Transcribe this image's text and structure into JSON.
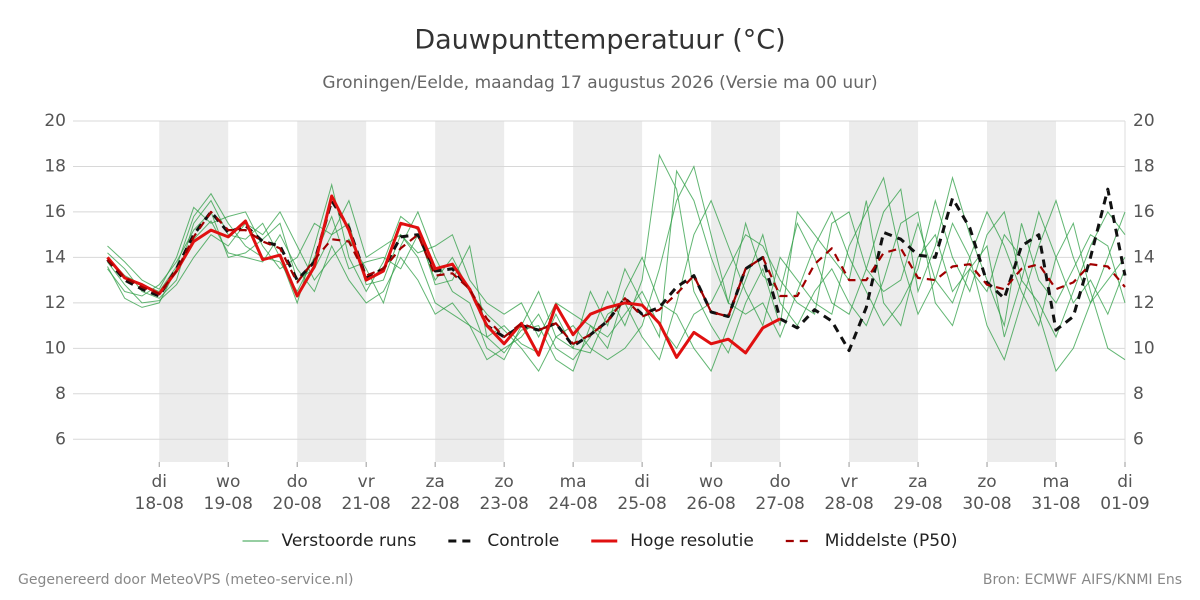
{
  "chart_data": {
    "type": "line",
    "title": "Dauwpunttemperatuur (°C)",
    "subtitle": "Groningen/Eelde, maandag 17 augustus 2026 (Versie ma 00 uur)",
    "footer_left": "Gegenereerd door MeteoVPS (meteo-service.nl)",
    "footer_right": "Bron: ECMWF AIFS/KNMI Ens",
    "grid": true,
    "legend": "bottom",
    "xlim": [
      -0.25,
      15
    ],
    "xticks": [
      {
        "value": 1,
        "label": "di 18-08"
      },
      {
        "value": 2,
        "label": "wo 19-08"
      },
      {
        "value": 3,
        "label": "do 20-08"
      },
      {
        "value": 4,
        "label": "vr 21-08"
      },
      {
        "value": 5,
        "label": "za 22-08"
      },
      {
        "value": 6,
        "label": "zo 23-08"
      },
      {
        "value": 7,
        "label": "ma 24-08"
      },
      {
        "value": 8,
        "label": "di 25-08"
      },
      {
        "value": 9,
        "label": "wo 26-08"
      },
      {
        "value": 10,
        "label": "do 27-08"
      },
      {
        "value": 11,
        "label": "vr 28-08"
      },
      {
        "value": 12,
        "label": "za 29-08"
      },
      {
        "value": 13,
        "label": "zo 30-08"
      },
      {
        "value": 14,
        "label": "ma 31-08"
      },
      {
        "value": 15,
        "label": "di 01-09"
      }
    ],
    "ylim": [
      5,
      20
    ],
    "yticks": [
      6,
      8,
      10,
      12,
      14,
      16,
      18,
      20
    ],
    "y2lim": [
      5,
      20
    ],
    "y2ticks": [
      6,
      8,
      10,
      12,
      14,
      16,
      18,
      20
    ],
    "x": [
      0.25,
      0.5,
      0.75,
      1,
      1.25,
      1.5,
      1.75,
      2,
      2.25,
      2.5,
      2.75,
      3,
      3.25,
      3.5,
      3.75,
      4,
      4.25,
      4.5,
      4.75,
      5,
      5.25,
      5.5,
      5.75,
      6,
      6.25,
      6.5,
      6.75,
      7,
      7.25,
      7.5,
      7.75,
      8,
      8.25,
      8.5,
      8.75,
      9,
      9.25,
      9.5,
      9.75,
      10,
      10.25,
      10.5,
      10.75,
      11,
      11.25,
      11.5,
      11.75,
      12,
      12.25,
      12.5,
      12.75,
      13,
      13.25,
      13.5,
      13.75,
      14,
      14.25,
      14.5,
      14.75,
      15
    ],
    "ensemble": {
      "name": "Verstoorde runs",
      "color": "#2e9e44",
      "members": [
        [
          14.2,
          13.5,
          12.5,
          12.2,
          13.0,
          15.5,
          16.5,
          15.0,
          14.8,
          15.5,
          14.0,
          12.0,
          14.5,
          17.2,
          14.0,
          12.5,
          13.8,
          15.8,
          15.2,
          12.8,
          13.0,
          14.5,
          10.5,
          11.0,
          10.2,
          9.8,
          11.5,
          10.0,
          12.5,
          11.0,
          13.5,
          12.0,
          10.5,
          17.8,
          16.5,
          14.0,
          12.0,
          15.5,
          13.2,
          12.5,
          15.5,
          14.0,
          12.0,
          11.5,
          13.5,
          16.0,
          17.0,
          12.5,
          14.5,
          17.5,
          15.0,
          13.0,
          11.0,
          15.5,
          13.0,
          12.0,
          13.5,
          15.0,
          14.5,
          12.0
        ],
        [
          13.6,
          12.2,
          11.8,
          12.0,
          13.5,
          14.8,
          15.6,
          14.2,
          14.0,
          13.8,
          15.0,
          13.5,
          12.5,
          14.5,
          13.0,
          12.0,
          12.5,
          14.0,
          13.0,
          11.5,
          12.0,
          11.0,
          9.5,
          10.0,
          10.5,
          11.5,
          10.0,
          9.5,
          10.5,
          12.5,
          11.0,
          13.0,
          18.5,
          17.0,
          12.5,
          11.0,
          9.8,
          12.0,
          13.5,
          11.0,
          16.0,
          15.0,
          14.0,
          13.0,
          16.5,
          12.0,
          11.0,
          14.0,
          15.0,
          12.5,
          13.5,
          14.5,
          10.5,
          13.0,
          16.0,
          14.0,
          12.0,
          13.0,
          11.5,
          13.5
        ],
        [
          14.5,
          13.8,
          13.0,
          12.6,
          14.0,
          16.2,
          15.5,
          15.8,
          16.0,
          14.5,
          13.5,
          14.0,
          15.5,
          15.0,
          16.5,
          14.0,
          14.5,
          15.0,
          14.2,
          14.5,
          15.0,
          13.0,
          12.0,
          11.5,
          12.0,
          10.5,
          12.0,
          11.5,
          11.0,
          10.5,
          11.5,
          12.5,
          11.0,
          10.0,
          11.5,
          12.0,
          13.5,
          15.0,
          14.5,
          13.0,
          12.0,
          11.5,
          15.5,
          16.0,
          13.5,
          12.5,
          13.0,
          15.5,
          13.0,
          12.0,
          14.0,
          16.0,
          14.5,
          12.5,
          11.0,
          14.0,
          15.5,
          12.5,
          10.0,
          9.5
        ],
        [
          13.8,
          12.8,
          12.0,
          12.1,
          12.8,
          14.0,
          15.0,
          14.5,
          15.5,
          15.0,
          16.0,
          14.5,
          13.0,
          14.0,
          14.8,
          13.5,
          12.0,
          14.5,
          16.0,
          14.0,
          12.5,
          12.0,
          10.0,
          9.5,
          11.0,
          12.5,
          10.5,
          10.0,
          9.8,
          11.5,
          12.0,
          10.5,
          9.5,
          12.0,
          15.0,
          16.5,
          14.5,
          12.5,
          11.0,
          14.0,
          13.0,
          12.0,
          11.5,
          14.5,
          16.0,
          17.5,
          14.0,
          11.5,
          13.0,
          15.5,
          14.0,
          11.0,
          9.5,
          12.0,
          14.5,
          16.5,
          14.0,
          12.0,
          13.0,
          14.0
        ],
        [
          14.0,
          13.2,
          12.8,
          12.5,
          13.6,
          15.8,
          16.8,
          15.5,
          14.5,
          14.0,
          13.8,
          12.5,
          14.0,
          15.8,
          13.5,
          13.8,
          14.0,
          13.5,
          15.0,
          13.0,
          14.0,
          12.5,
          11.5,
          10.8,
          10.0,
          9.0,
          10.5,
          11.0,
          10.0,
          9.5,
          10.0,
          11.0,
          13.5,
          16.5,
          18.0,
          15.0,
          12.0,
          11.5,
          12.0,
          10.5,
          12.5,
          14.5,
          16.0,
          14.0,
          12.5,
          11.0,
          12.0,
          13.5,
          16.5,
          14.0,
          12.5,
          15.0,
          16.0,
          13.0,
          12.0,
          10.5,
          12.5,
          14.5,
          16.0,
          15.0
        ],
        [
          13.5,
          12.5,
          12.3,
          12.8,
          13.8,
          15.2,
          16.0,
          14.0,
          14.2,
          14.8,
          15.5,
          13.0,
          13.5,
          15.0,
          15.5,
          12.8,
          13.0,
          15.0,
          14.0,
          12.0,
          11.5,
          11.0,
          10.5,
          9.8,
          10.8,
          11.0,
          9.5,
          9.0,
          11.0,
          10.0,
          12.5,
          14.0,
          12.0,
          11.5,
          10.0,
          9.0,
          11.0,
          13.0,
          15.0,
          12.0,
          11.0,
          12.5,
          13.5,
          12.0,
          11.0,
          13.0,
          15.5,
          16.0,
          12.0,
          11.0,
          13.5,
          12.5,
          15.0,
          14.0,
          11.5,
          9.0,
          10.0,
          12.0,
          14.0,
          16.0
        ]
      ]
    },
    "series": [
      {
        "name": "Controle",
        "color": "#111111",
        "style": "dashed",
        "width": 3,
        "values": [
          13.9,
          13.0,
          12.6,
          12.3,
          13.5,
          15.0,
          16.0,
          15.1,
          15.4,
          14.7,
          14.5,
          13.0,
          13.8,
          16.5,
          15.3,
          13.1,
          13.5,
          14.9,
          15.0,
          13.4,
          13.5,
          12.6,
          11.0,
          10.5,
          11.0,
          10.8,
          11.1,
          10.1,
          10.6,
          11.2,
          12.2,
          11.5,
          11.8,
          12.7,
          13.2,
          11.6,
          11.4,
          13.5,
          14.0,
          11.3,
          10.9,
          11.7,
          11.2,
          9.9,
          11.8,
          15.1,
          14.8,
          14.1,
          14.0,
          16.6,
          15.3,
          12.9,
          12.2,
          14.5,
          15.0,
          10.8,
          11.4,
          14.0,
          17.0,
          13.2
        ]
      },
      {
        "name": "Hoge resolutie",
        "color": "#e01010",
        "style": "solid",
        "width": 3,
        "values": [
          14.0,
          13.1,
          12.8,
          12.4,
          13.4,
          14.7,
          15.2,
          14.9,
          15.6,
          13.9,
          14.1,
          12.3,
          13.6,
          16.7,
          15.2,
          13.0,
          13.4,
          15.5,
          15.3,
          13.5,
          13.7,
          12.6,
          11.0,
          10.2,
          11.1,
          9.7,
          11.9,
          10.6,
          11.5,
          11.8,
          12.0,
          11.9,
          11.1,
          9.6,
          10.7,
          10.2,
          10.4,
          9.8,
          10.9,
          11.3,
          null,
          null,
          null,
          null,
          null,
          null,
          null,
          null,
          null,
          null,
          null,
          null,
          null,
          null,
          null,
          null,
          null,
          null,
          null,
          null
        ]
      },
      {
        "name": "Middelste (P50)",
        "color": "#a00000",
        "style": "dashed",
        "width": 2.2,
        "values": [
          13.9,
          13.1,
          12.7,
          12.4,
          13.4,
          14.9,
          16.0,
          15.2,
          15.2,
          14.7,
          14.4,
          12.9,
          13.9,
          14.8,
          14.7,
          13.2,
          13.5,
          14.4,
          15.0,
          13.2,
          13.3,
          12.6,
          11.3,
          10.5,
          11.1,
          10.8,
          11.1,
          10.2,
          10.6,
          11.2,
          12.2,
          11.4,
          11.7,
          12.4,
          13.2,
          11.6,
          11.4,
          13.5,
          14.0,
          12.3,
          12.3,
          13.7,
          14.4,
          13.0,
          13.0,
          14.2,
          14.4,
          13.1,
          13.0,
          13.6,
          13.7,
          12.8,
          12.6,
          13.5,
          13.7,
          12.6,
          12.9,
          13.7,
          13.6,
          12.7
        ]
      }
    ]
  }
}
